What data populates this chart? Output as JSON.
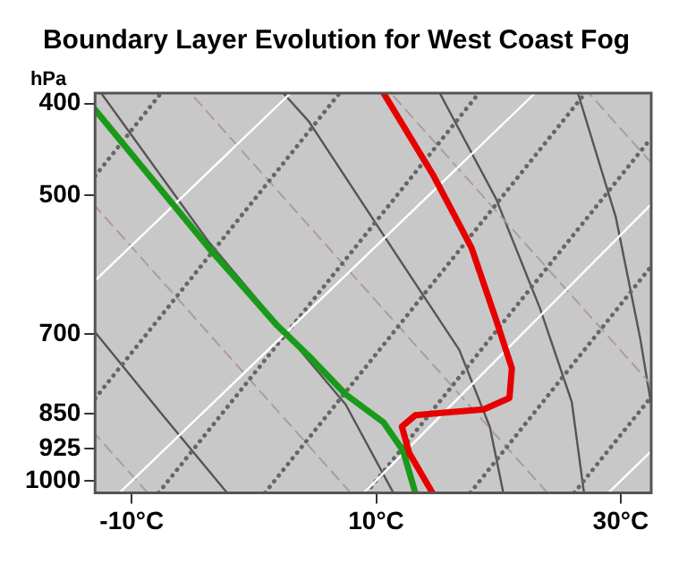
{
  "chart_data": {
    "type": "line",
    "title": "Boundary Layer Evolution for West Coast Fog",
    "ylabel": "hPa",
    "log": "y",
    "xlim": [
      -13,
      32.5
    ],
    "ylim": [
      1030,
      390
    ],
    "xticks": [
      {
        "value": -10,
        "label": "-10°C"
      },
      {
        "value": 10,
        "label": "10°C"
      },
      {
        "value": 30,
        "label": "30°C"
      }
    ],
    "yticks": [
      400,
      500,
      700,
      850,
      925,
      1000
    ],
    "series": [
      {
        "color": "#e60000",
        "x": [
          10.6,
          14.7,
          17.8,
          19.8,
          21.1,
          20.9,
          18.8,
          13.2,
          12.1,
          12.7,
          14.6
        ],
        "values": [
          390,
          477,
          568,
          676,
          761,
          818,
          841,
          853,
          877,
          935,
          1030
        ]
      },
      {
        "color": "#1a9a1a",
        "x": [
          -13,
          -3.7,
          1.9,
          4.5,
          7.5,
          10.6,
          12.2,
          13.2
        ],
        "values": [
          406,
          568,
          686,
          739,
          811,
          868,
          930,
          1030
        ]
      },
      {
        "color": "#ffffff",
        "line_style": "solid",
        "x": [
          -13,
          3.0
        ],
        "values": [
          615,
          390
        ]
      },
      {
        "color": "#ffffff",
        "line_style": "solid",
        "x": [
          -11.0,
          23.0
        ],
        "values": [
          1030,
          390
        ]
      },
      {
        "color": "#ffffff",
        "line_style": "solid",
        "x": [
          9.0,
          32.5
        ],
        "values": [
          1030,
          511
        ]
      },
      {
        "color": "#ffffff",
        "line_style": "solid",
        "x": [
          29.0,
          32.5
        ],
        "values": [
          1030,
          931
        ]
      },
      {
        "color": "#666666",
        "line_style": "dotted",
        "x": [
          -13,
          -7.6
        ],
        "values": [
          477,
          390
        ]
      },
      {
        "color": "#666666",
        "line_style": "dotted",
        "x": [
          -13,
          7.0
        ],
        "values": [
          819,
          390
        ]
      },
      {
        "color": "#666666",
        "line_style": "dotted",
        "x": [
          -7.8,
          18.4
        ],
        "values": [
          1030,
          390
        ]
      },
      {
        "color": "#666666",
        "line_style": "dotted",
        "x": [
          0.9,
          27.1
        ],
        "values": [
          1030,
          390
        ]
      },
      {
        "color": "#666666",
        "line_style": "dotted",
        "x": [
          9.2,
          32.5
        ],
        "values": [
          1030,
          435
        ]
      },
      {
        "color": "#666666",
        "line_style": "dotted",
        "x": [
          17.7,
          32.5
        ],
        "values": [
          1030,
          594
        ]
      },
      {
        "color": "#666666",
        "line_style": "dotted",
        "x": [
          26.2,
          32.5
        ],
        "values": [
          1030,
          816
        ]
      },
      {
        "color": "#b09a9a",
        "line_style": "dashed",
        "x": [
          -8.7,
          -13
        ],
        "values": [
          1030,
          893
        ]
      },
      {
        "color": "#b09a9a",
        "line_style": "dashed",
        "x": [
          7.9,
          -13
        ],
        "values": [
          1030,
          513
        ]
      },
      {
        "color": "#b09a9a",
        "line_style": "dashed",
        "x": [
          24.0,
          -5.2
        ],
        "values": [
          1030,
          390
        ]
      },
      {
        "color": "#b09a9a",
        "line_style": "dashed",
        "x": [
          32.5,
          11.2
        ],
        "values": [
          792,
          390
        ]
      },
      {
        "color": "#b09a9a",
        "line_style": "dashed",
        "x": [
          32.5,
          27.4
        ],
        "values": [
          462,
          390
        ]
      },
      {
        "color": "#555555",
        "line_style": "solid",
        "x": [
          -12.5,
          -3.7,
          7.5,
          11.4
        ],
        "values": [
          390,
          560,
          831,
          1030
        ]
      },
      {
        "color": "#555555",
        "line_style": "solid",
        "x": [
          2.4,
          4.5,
          12.2,
          16.8,
          19.3,
          20.4
        ],
        "values": [
          390,
          418,
          592,
          728,
          878,
          1030
        ]
      },
      {
        "color": "#555555",
        "line_style": "solid",
        "x": [
          15.2,
          19.8,
          23.4,
          26.0,
          27.0
        ],
        "values": [
          390,
          504,
          658,
          826,
          1030
        ]
      },
      {
        "color": "#555555",
        "line_style": "solid",
        "x": [
          26.5,
          29.6,
          31.6,
          32.5
        ],
        "values": [
          390,
          527,
          708,
          831
        ]
      },
      {
        "color": "#555555",
        "line_style": "solid",
        "x": [
          -13,
          -7.6,
          -2.2
        ],
        "values": [
          697,
          849,
          1030
        ]
      }
    ]
  }
}
